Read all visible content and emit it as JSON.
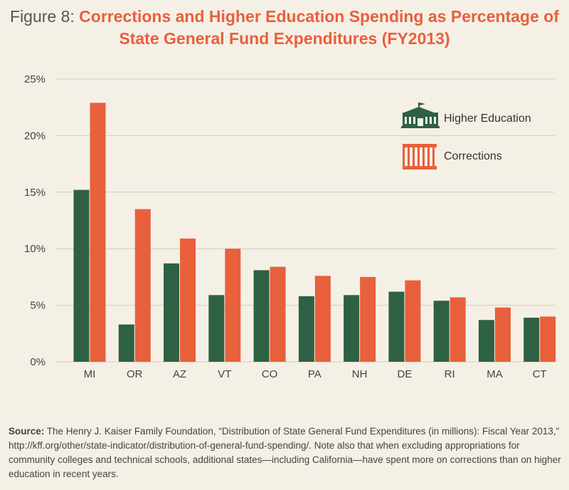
{
  "title": {
    "prefix": "Figure 8: ",
    "line1": "Corrections and Higher Education Spending as Percentage of",
    "line2": "State General Fund Expenditures (FY2013)"
  },
  "colors": {
    "higher_education": "#2e6143",
    "corrections": "#e8603c",
    "gridline": "#d9ccaf",
    "background": "#f5f0e6"
  },
  "legend": {
    "higher_education_icon": "school-building-icon",
    "corrections_icon": "prison-bars-icon"
  },
  "chart_data": {
    "type": "bar",
    "title": "Corrections and Higher Education Spending as Percentage of State General Fund Expenditures (FY2013)",
    "xlabel": "",
    "ylabel": "",
    "ylim": [
      0,
      25
    ],
    "yticks": [
      "0%",
      "5%",
      "10%",
      "15%",
      "20%",
      "25%"
    ],
    "grid": true,
    "legend_position": "top-right",
    "categories": [
      "MI",
      "OR",
      "AZ",
      "VT",
      "CO",
      "PA",
      "NH",
      "DE",
      "RI",
      "MA",
      "CT"
    ],
    "series": [
      {
        "name": "Higher Education",
        "values": [
          15.2,
          3.3,
          8.7,
          5.9,
          8.1,
          5.8,
          5.9,
          6.2,
          5.4,
          3.7,
          3.9
        ]
      },
      {
        "name": "Corrections",
        "values": [
          22.9,
          13.5,
          10.9,
          10.0,
          8.4,
          7.6,
          7.5,
          7.2,
          5.7,
          4.8,
          4.0
        ]
      }
    ]
  },
  "footer": {
    "source_label": "Source:",
    "text": " The Henry J. Kaiser Family Foundation, “Distribution of State General Fund Expenditures (in millions): Fiscal Year 2013,” http://kff.org/other/state-indicator/distribution-of-general-fund-spending/. Note also that when excluding appropriations for community colleges and technical schools, additional states—including California—have spent more on corrections than on higher education in recent years."
  }
}
